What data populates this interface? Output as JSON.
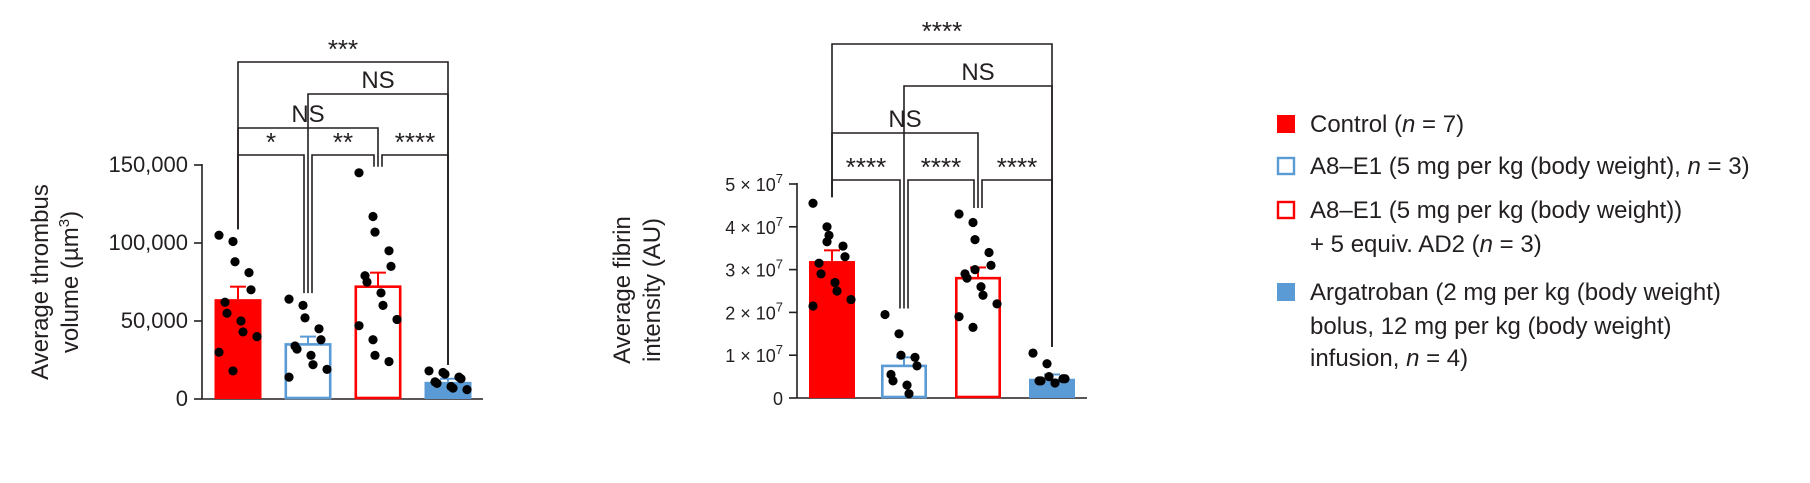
{
  "colors": {
    "red": "#ff0000",
    "blue": "#5b9bd5",
    "ink": "#231f20"
  },
  "chart_data": [
    {
      "type": "bar",
      "ylabel_line1": "Average thrombus",
      "ylabel_line2_pre": "volume (µm",
      "ylabel_line2_sup": "3",
      "ylabel_line2_post": ")",
      "ylim": [
        0,
        150000
      ],
      "yticks": [
        {
          "v": 0,
          "label": "0"
        },
        {
          "v": 50000,
          "label": "50,000"
        },
        {
          "v": 100000,
          "label": "100,000"
        },
        {
          "v": 150000,
          "label": "150,000"
        }
      ],
      "series": [
        {
          "values": [
            64000,
            35000,
            72000,
            11000
          ],
          "errors": [
            8000,
            5000,
            9000,
            2000
          ]
        }
      ],
      "points": [
        [
          105000,
          101000,
          88000,
          81000,
          70000,
          62000,
          55000,
          50000,
          43000,
          40000,
          30000,
          18000
        ],
        [
          64000,
          60000,
          52000,
          45000,
          38000,
          34000,
          32000,
          28000,
          22000,
          19000,
          14000
        ],
        [
          145000,
          117000,
          107000,
          95000,
          85000,
          79000,
          75000,
          68000,
          60000,
          51000,
          47000,
          38000,
          28000,
          24000
        ],
        [
          18000,
          17000,
          16000,
          14000,
          13000,
          11000,
          10000,
          8000,
          7000,
          6000
        ]
      ],
      "significance": [
        {
          "from": 0,
          "to": 3,
          "label": "***"
        },
        {
          "from": 1,
          "to": 3,
          "label": "NS"
        },
        {
          "from": 0,
          "to": 2,
          "label": "NS"
        },
        {
          "from": 0,
          "to": 1,
          "label": "*"
        },
        {
          "from": 1,
          "to": 2,
          "label": "**"
        },
        {
          "from": 2,
          "to": 3,
          "label": "****"
        }
      ]
    },
    {
      "type": "bar",
      "ylabel_line1": "Average fibrin",
      "ylabel_line2_pre": "intensity (AU)",
      "ylabel_line2_sup": "",
      "ylabel_line2_post": "",
      "ylim": [
        0,
        50000000
      ],
      "yticks": [
        {
          "v": 0,
          "label": "0"
        },
        {
          "v": 10000000,
          "label": "1 × 10",
          "sup": "7"
        },
        {
          "v": 20000000,
          "label": "2 × 10",
          "sup": "7"
        },
        {
          "v": 30000000,
          "label": "3 × 10",
          "sup": "7"
        },
        {
          "v": 40000000,
          "label": "4 × 10",
          "sup": "7"
        },
        {
          "v": 50000000,
          "label": "5 × 10",
          "sup": "7"
        }
      ],
      "series": [
        {
          "values": [
            32000000,
            7500000,
            28000000,
            4500000
          ],
          "errors": [
            2500000,
            2000000,
            2500000,
            1000000
          ]
        }
      ],
      "points": [
        [
          45500000,
          40000000,
          38000000,
          35500000,
          33000000,
          31500000,
          29000000,
          27000000,
          25000000,
          23000000,
          21500000,
          36500000
        ],
        [
          19500000,
          15000000,
          10000000,
          9500000,
          7500000,
          5500000,
          4000000,
          3000000,
          1000000
        ],
        [
          43000000,
          41000000,
          37000000,
          34000000,
          31000000,
          29000000,
          28000000,
          26000000,
          24000000,
          22000000,
          19000000,
          16500000,
          30000000
        ],
        [
          10500000,
          8000000,
          5000000,
          4500000,
          4500000,
          4000000,
          4000000,
          3500000
        ]
      ],
      "significance": [
        {
          "from": 0,
          "to": 3,
          "label": "****"
        },
        {
          "from": 1,
          "to": 3,
          "label": "NS"
        },
        {
          "from": 0,
          "to": 2,
          "label": "NS"
        },
        {
          "from": 0,
          "to": 1,
          "label": "****"
        },
        {
          "from": 1,
          "to": 2,
          "label": "****"
        },
        {
          "from": 2,
          "to": 3,
          "label": "****"
        }
      ]
    }
  ],
  "legend": [
    {
      "style": "red-filled",
      "line1_pre": "Control (",
      "line1_it": "n",
      "line1_post": " = 7)"
    },
    {
      "style": "blue-open",
      "line1_pre": "A8–E1 (5 mg per kg (body weight), ",
      "line1_it": "n",
      "line1_post": " = 3)"
    },
    {
      "style": "red-open",
      "line1_pre": "A8–E1 (5 mg per kg (body weight))",
      "line1_it": "",
      "line1_post": "",
      "line2_pre": "+ 5 equiv. AD2 (",
      "line2_it": "n",
      "line2_post": " = 3)"
    },
    {
      "style": "blue-filled",
      "line1_pre": "Argatroban (2 mg per kg (body weight)",
      "line1_it": "",
      "line1_post": "",
      "line2_pre": "bolus, 12 mg per kg (body weight)",
      "line2_it": "",
      "line2_post": "",
      "line3_pre": "infusion, ",
      "line3_it": "n",
      "line3_post": " = 4)"
    }
  ]
}
